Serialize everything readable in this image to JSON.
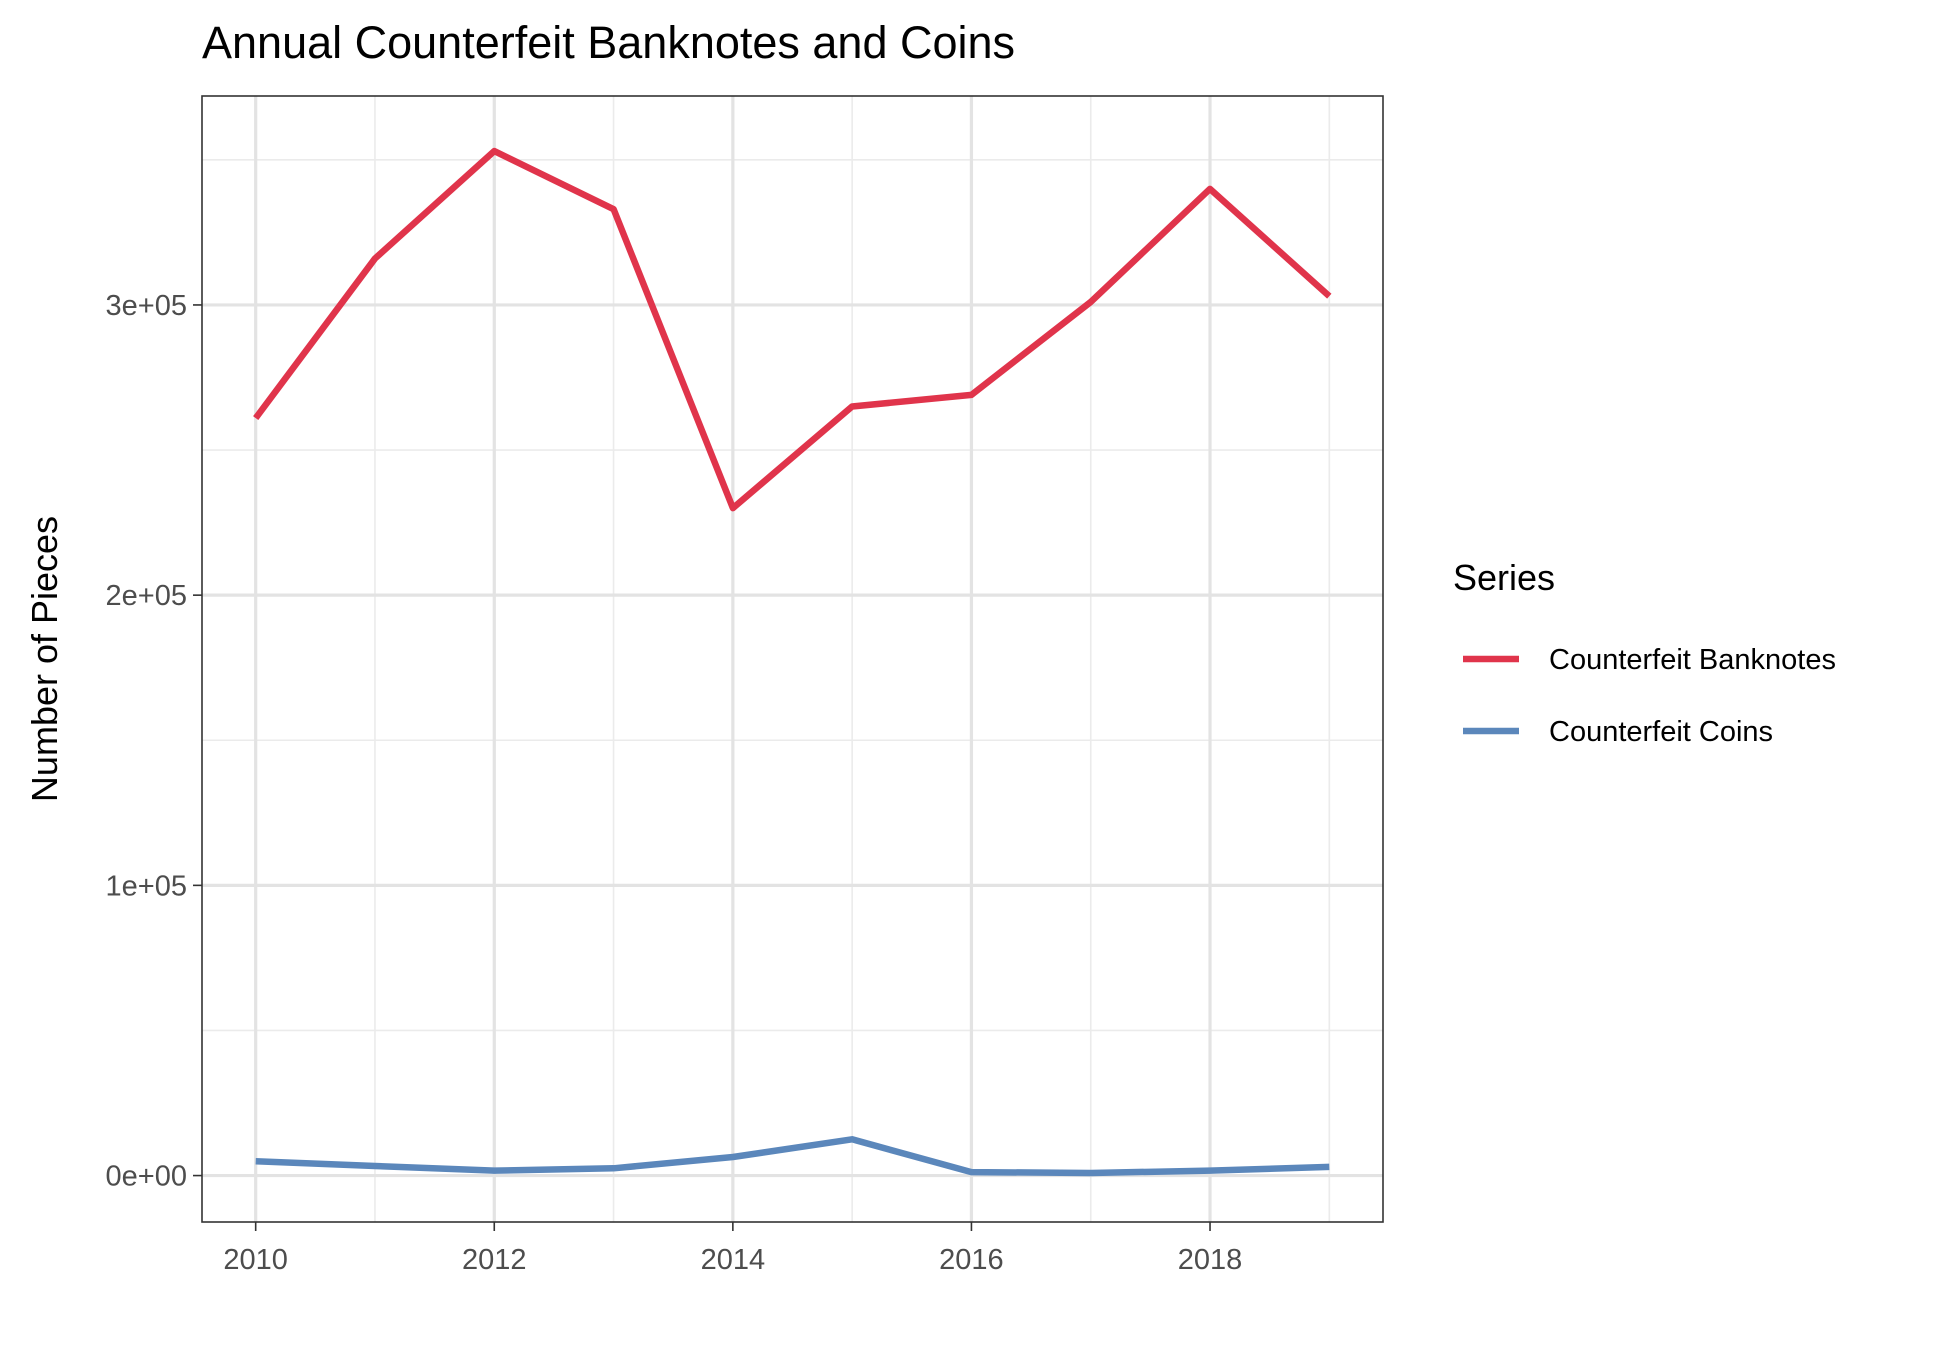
{
  "chart_data": {
    "type": "line",
    "title": "Annual Counterfeit Banknotes and Coins",
    "xlabel": "",
    "ylabel": "Number of Pieces",
    "x": [
      2010,
      2011,
      2012,
      2013,
      2014,
      2015,
      2016,
      2017,
      2018,
      2019
    ],
    "xlim": [
      2009.55,
      2019.45
    ],
    "ylim": [
      -16000,
      372000
    ],
    "x_ticks": [
      2010,
      2012,
      2014,
      2016,
      2018
    ],
    "y_ticks": [
      0,
      100000,
      200000,
      300000
    ],
    "x_tick_labels": [
      "2010",
      "2012",
      "2014",
      "2016",
      "2018"
    ],
    "y_tick_labels": [
      "0e+00",
      "1e+05",
      "2e+05",
      "3e+05"
    ],
    "y_minor_ticks": [
      50000,
      150000,
      250000,
      350000
    ],
    "x_minor_ticks": [
      2011,
      2013,
      2015,
      2017,
      2019
    ],
    "grid": true,
    "legend": {
      "title": "Series",
      "placement": "right"
    },
    "series": [
      {
        "name": "Counterfeit Banknotes",
        "color": "#e0344b",
        "values": [
          261000,
          316000,
          353000,
          333000,
          230000,
          265000,
          269000,
          301000,
          340000,
          303000
        ]
      },
      {
        "name": "Counterfeit Coins",
        "color": "#5b87bb",
        "values": [
          4900,
          3300,
          1700,
          2500,
          6400,
          12500,
          1200,
          900,
          1700,
          3000
        ]
      }
    ]
  }
}
